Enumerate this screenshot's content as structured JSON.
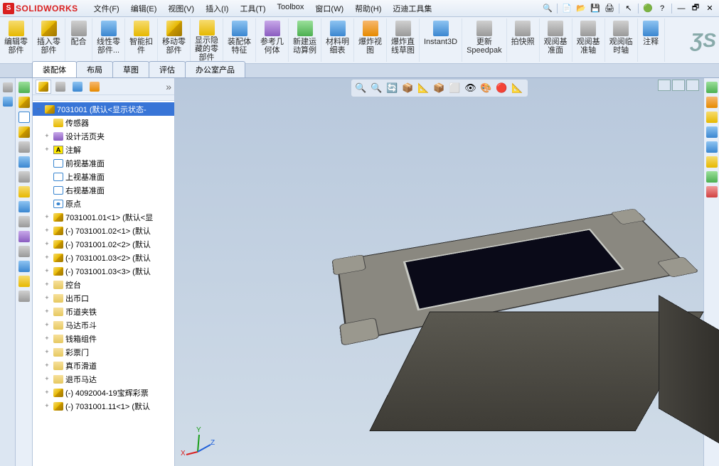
{
  "app": {
    "name": "SOLIDWORKS"
  },
  "menus": [
    {
      "label": "文件(F)"
    },
    {
      "label": "编辑(E)"
    },
    {
      "label": "视图(V)"
    },
    {
      "label": "插入(I)"
    },
    {
      "label": "工具(T)"
    },
    {
      "label": "Toolbox"
    },
    {
      "label": "窗口(W)"
    },
    {
      "label": "帮助(H)"
    },
    {
      "label": "迈迪工具集"
    }
  ],
  "ribbon": [
    {
      "label": "编辑零\n部件",
      "cls": "ic-yellow"
    },
    {
      "label": "插入零\n部件",
      "cls": "ic-cube"
    },
    {
      "label": "配合",
      "cls": "ic-gray"
    },
    {
      "label": "线性零\n部件...",
      "cls": "ic-blue"
    },
    {
      "label": "智能扣\n件",
      "cls": "ic-yellow"
    },
    {
      "label": "移动零\n部件",
      "cls": "ic-cube"
    },
    {
      "label": "显示隐\n藏的零\n部件",
      "cls": "ic-yellow"
    },
    {
      "label": "装配体\n特征",
      "cls": "ic-blue"
    },
    {
      "label": "参考几\n何体",
      "cls": "ic-purple"
    },
    {
      "label": "新建运\n动算例",
      "cls": "ic-green"
    },
    {
      "label": "材料明\n细表",
      "cls": "ic-blue"
    },
    {
      "label": "爆炸视\n图",
      "cls": "ic-orange"
    },
    {
      "label": "爆炸直\n线草图",
      "cls": "ic-gray"
    },
    {
      "label": "Instant3D",
      "cls": "ic-blue"
    },
    {
      "label": "更新\nSpeedpak",
      "cls": "ic-gray"
    },
    {
      "label": "拍快照",
      "cls": "ic-gray"
    },
    {
      "label": "观阅基\n准面",
      "cls": "ic-gray"
    },
    {
      "label": "观阅基\n准轴",
      "cls": "ic-gray"
    },
    {
      "label": "观阅临\n时轴",
      "cls": "ic-gray"
    },
    {
      "label": "注释",
      "cls": "ic-blue"
    }
  ],
  "doc_tabs": [
    {
      "label": "装配体",
      "active": true
    },
    {
      "label": "布局"
    },
    {
      "label": "草图"
    },
    {
      "label": "评估"
    },
    {
      "label": "办公室产品"
    }
  ],
  "tree": [
    {
      "toggle": "-",
      "icon": "ic-cube",
      "label": "7031001  (默认<显示状态-",
      "selected": true,
      "indent": 0
    },
    {
      "toggle": "",
      "icon": "ic-yellow",
      "label": "传感器",
      "indent": 1
    },
    {
      "toggle": "+",
      "icon": "ic-purple",
      "label": "设计活页夹",
      "indent": 1
    },
    {
      "toggle": "+",
      "icon": "ic-yellow",
      "label": "注解",
      "indent": 1,
      "A": true
    },
    {
      "toggle": "",
      "icon": "ic-plane",
      "label": "前视基准面",
      "indent": 1
    },
    {
      "toggle": "",
      "icon": "ic-plane",
      "label": "上视基准面",
      "indent": 1
    },
    {
      "toggle": "",
      "icon": "ic-plane",
      "label": "右视基准面",
      "indent": 1
    },
    {
      "toggle": "",
      "icon": "ic-origin",
      "label": "原点",
      "indent": 1
    },
    {
      "toggle": "+",
      "icon": "ic-cube",
      "label": "7031001.01<1> (默认<显",
      "indent": 1
    },
    {
      "toggle": "+",
      "icon": "ic-cube",
      "label": "(-) 7031001.02<1> (默认",
      "indent": 1
    },
    {
      "toggle": "+",
      "icon": "ic-cube",
      "label": "(-) 7031001.02<2> (默认",
      "indent": 1
    },
    {
      "toggle": "+",
      "icon": "ic-cube",
      "label": "(-) 7031001.03<2> (默认",
      "indent": 1
    },
    {
      "toggle": "+",
      "icon": "ic-cube",
      "label": "(-) 7031001.03<3> (默认",
      "indent": 1
    },
    {
      "toggle": "+",
      "icon": "ic-folder",
      "label": "控台",
      "indent": 1
    },
    {
      "toggle": "+",
      "icon": "ic-folder",
      "label": "出币口",
      "indent": 1
    },
    {
      "toggle": "+",
      "icon": "ic-folder",
      "label": "币道夹铁",
      "indent": 1
    },
    {
      "toggle": "+",
      "icon": "ic-folder",
      "label": "马达币斗",
      "indent": 1
    },
    {
      "toggle": "+",
      "icon": "ic-folder",
      "label": "钱箱组件",
      "indent": 1
    },
    {
      "toggle": "+",
      "icon": "ic-folder",
      "label": "彩票门",
      "indent": 1
    },
    {
      "toggle": "+",
      "icon": "ic-folder",
      "label": "真币滑道",
      "indent": 1
    },
    {
      "toggle": "+",
      "icon": "ic-folder",
      "label": "退币马达",
      "indent": 1
    },
    {
      "toggle": "+",
      "icon": "ic-cube",
      "label": "(-) 4092004-19宝辉彩票",
      "indent": 1
    },
    {
      "toggle": "+",
      "icon": "ic-cube",
      "label": "(-) 7031001.11<1> (默认",
      "indent": 1
    }
  ],
  "vp_tools": [
    "🔍",
    "🔍",
    "🔄",
    "📦",
    "📐",
    "📦",
    "⬜",
    "👁",
    "🎨",
    "🔴",
    "📐"
  ],
  "right_tools": [
    "ic-green",
    "ic-orange",
    "ic-yellow",
    "ic-blue",
    "ic-blue",
    "ic-yellow",
    "ic-green",
    "ic-red"
  ],
  "axis": {
    "x": "X",
    "y": "Y",
    "z": "Z",
    "x_color": "#d92020",
    "y_color": "#1a9e1a",
    "z_color": "#2060d9"
  }
}
